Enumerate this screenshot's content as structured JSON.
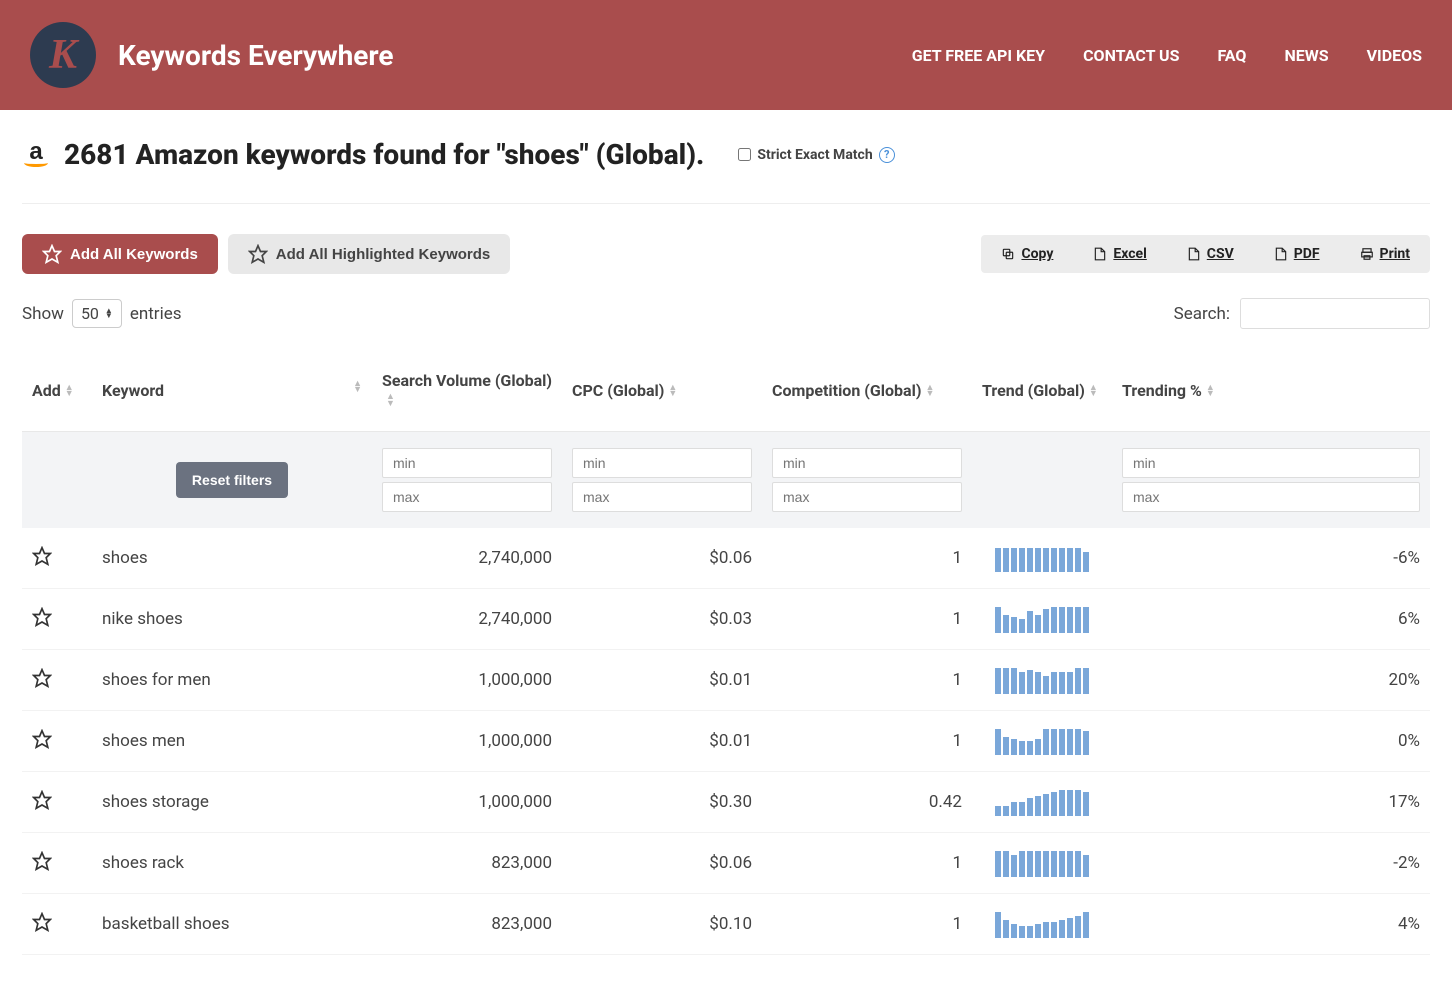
{
  "header": {
    "brand": "Keywords Everywhere",
    "nav": [
      "GET FREE API KEY",
      "CONTACT US",
      "FAQ",
      "NEWS",
      "VIDEOS"
    ]
  },
  "page": {
    "title": "2681 Amazon keywords found for \"shoes\" (Global).",
    "strict_label": "Strict Exact Match"
  },
  "toolbar": {
    "add_all": "Add All Keywords",
    "add_highlighted": "Add All Highlighted Keywords",
    "export": {
      "copy": "Copy",
      "excel": "Excel",
      "csv": "CSV",
      "pdf": "PDF",
      "print": "Print"
    }
  },
  "controls": {
    "show_label_pre": "Show",
    "show_value": "50",
    "show_label_post": "entries",
    "search_label": "Search:"
  },
  "columns": {
    "add": "Add",
    "keyword": "Keyword",
    "volume": "Search Volume (Global)",
    "cpc": "CPC (Global)",
    "competition": "Competition (Global)",
    "trend": "Trend (Global)",
    "trending": "Trending %"
  },
  "filters": {
    "reset": "Reset filters",
    "min": "min",
    "max": "max"
  },
  "spark_color": "#7aa7d9",
  "rows": [
    {
      "keyword": "shoes",
      "volume": "2,740,000",
      "cpc": "$0.06",
      "competition": "1",
      "trending": "-6%",
      "bars": [
        24,
        24,
        24,
        24,
        24,
        24,
        24,
        24,
        24,
        24,
        24,
        20
      ]
    },
    {
      "keyword": "nike shoes",
      "volume": "2,740,000",
      "cpc": "$0.03",
      "competition": "1",
      "trending": "6%",
      "bars": [
        26,
        18,
        16,
        14,
        22,
        18,
        24,
        26,
        26,
        26,
        26,
        26
      ]
    },
    {
      "keyword": "shoes for men",
      "volume": "1,000,000",
      "cpc": "$0.01",
      "competition": "1",
      "trending": "20%",
      "bars": [
        26,
        26,
        26,
        22,
        24,
        22,
        18,
        22,
        22,
        22,
        26,
        26
      ]
    },
    {
      "keyword": "shoes men",
      "volume": "1,000,000",
      "cpc": "$0.01",
      "competition": "1",
      "trending": "0%",
      "bars": [
        26,
        18,
        16,
        14,
        14,
        16,
        26,
        26,
        26,
        26,
        26,
        24
      ]
    },
    {
      "keyword": "shoes storage",
      "volume": "1,000,000",
      "cpc": "$0.30",
      "competition": "0.42",
      "trending": "17%",
      "bars": [
        10,
        10,
        14,
        14,
        18,
        20,
        22,
        24,
        26,
        26,
        26,
        24
      ]
    },
    {
      "keyword": "shoes rack",
      "volume": "823,000",
      "cpc": "$0.06",
      "competition": "1",
      "trending": "-2%",
      "bars": [
        26,
        26,
        22,
        26,
        26,
        26,
        26,
        26,
        26,
        26,
        26,
        22
      ]
    },
    {
      "keyword": "basketball shoes",
      "volume": "823,000",
      "cpc": "$0.10",
      "competition": "1",
      "trending": "4%",
      "bars": [
        26,
        18,
        14,
        12,
        12,
        14,
        16,
        16,
        18,
        20,
        22,
        26
      ]
    }
  ]
}
